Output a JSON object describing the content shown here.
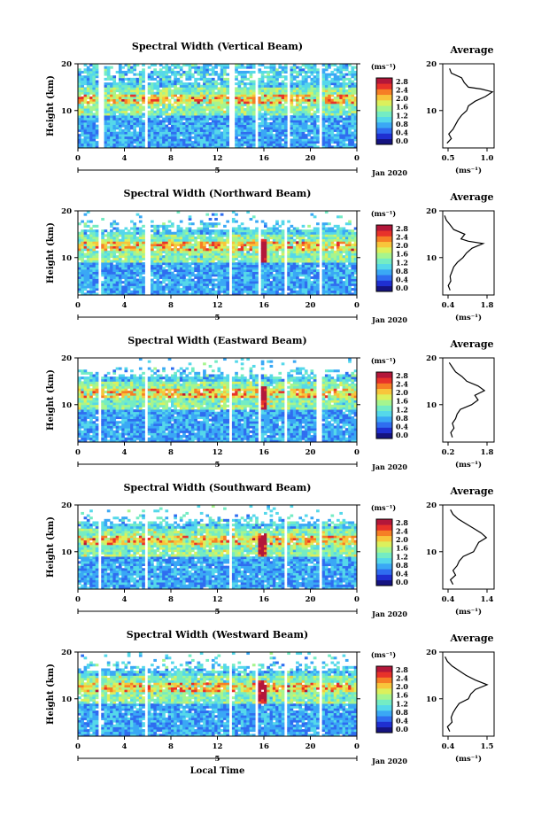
{
  "common": {
    "colorbar_unit": "(ms⁻¹)",
    "colorbar_ticks": [
      "2.8",
      "2.4",
      "2.0",
      "1.6",
      "1.2",
      "0.8",
      "0.4",
      "0.0"
    ],
    "ylabel": "Height (km)",
    "y_ticks": [
      "20",
      "10"
    ],
    "x_ticks": [
      "0",
      "4",
      "8",
      "12",
      "16",
      "20",
      "0"
    ],
    "date_marker": "5",
    "date_label": "Jan 2020",
    "avg_title": "Average",
    "avg_xlabel": "(ms⁻¹)",
    "xlabel_bottom": "Local Time"
  },
  "colors": {
    "colormap": [
      "#151380",
      "#1f2fd1",
      "#2f6df0",
      "#3aa8f5",
      "#55d8ea",
      "#74ecc4",
      "#a6f58e",
      "#dcf05c",
      "#f8c53b",
      "#f67f25",
      "#e8322a",
      "#b3173a"
    ]
  },
  "chart_data": [
    {
      "type": "heatmap",
      "title": "Spectral Width (Vertical Beam)",
      "ylabel": "Height (km)",
      "x_unit": "hours local time",
      "x_range": [
        0,
        24
      ],
      "y_range": [
        2,
        20
      ],
      "color_range": [
        0.0,
        3.0
      ],
      "data_gaps_hours": [
        [
          1.8,
          2.3
        ],
        [
          5.7,
          6.1
        ],
        [
          13.0,
          13.4
        ],
        [
          15.2,
          15.4
        ],
        [
          17.9,
          18.2
        ],
        [
          20.8,
          21.1
        ]
      ],
      "average_profile": {
        "title": "Average",
        "xlim": [
          0.5,
          1.1
        ],
        "x_ticks": [
          "0.5",
          "1.0"
        ],
        "points": [
          [
            0.55,
            3
          ],
          [
            0.6,
            4
          ],
          [
            0.57,
            5
          ],
          [
            0.62,
            6
          ],
          [
            0.65,
            7
          ],
          [
            0.68,
            8
          ],
          [
            0.72,
            9
          ],
          [
            0.78,
            10
          ],
          [
            0.8,
            11
          ],
          [
            0.88,
            12
          ],
          [
            1.0,
            13
          ],
          [
            1.08,
            14
          ],
          [
            0.95,
            14.6
          ],
          [
            0.8,
            15
          ],
          [
            0.75,
            16
          ],
          [
            0.72,
            17
          ],
          [
            0.6,
            18
          ],
          [
            0.58,
            19
          ]
        ]
      }
    },
    {
      "type": "heatmap",
      "title": "Spectral Width (Northward Beam)",
      "ylabel": "Height (km)",
      "x_unit": "hours local time",
      "x_range": [
        0,
        24
      ],
      "y_range": [
        2,
        20
      ],
      "color_range": [
        0.0,
        3.0
      ],
      "data_gaps_hours": [
        [
          1.8,
          2.1
        ],
        [
          5.8,
          6.2
        ],
        [
          13.0,
          13.3
        ],
        [
          15.5,
          15.8
        ],
        [
          17.8,
          18.1
        ],
        [
          20.7,
          21.0
        ]
      ],
      "average_profile": {
        "title": "Average",
        "xlim": [
          0.4,
          1.8
        ],
        "x_ticks": [
          "0.4",
          "1.8"
        ],
        "points": [
          [
            0.6,
            3
          ],
          [
            0.55,
            4
          ],
          [
            0.62,
            5
          ],
          [
            0.6,
            6
          ],
          [
            0.65,
            7
          ],
          [
            0.7,
            8
          ],
          [
            0.8,
            9
          ],
          [
            0.95,
            10
          ],
          [
            1.05,
            11
          ],
          [
            1.2,
            12
          ],
          [
            1.5,
            13
          ],
          [
            1.1,
            13.5
          ],
          [
            0.9,
            14
          ],
          [
            1.0,
            15
          ],
          [
            0.7,
            16
          ],
          [
            0.6,
            17
          ],
          [
            0.5,
            18
          ],
          [
            0.45,
            19
          ]
        ]
      }
    },
    {
      "type": "heatmap",
      "title": "Spectral Width (Eastward Beam)",
      "ylabel": "Height (km)",
      "x_unit": "hours local time",
      "x_range": [
        0,
        24
      ],
      "y_range": [
        2,
        20
      ],
      "color_range": [
        0.0,
        3.0
      ],
      "data_gaps_hours": [
        [
          1.8,
          2.1
        ],
        [
          5.8,
          6.1
        ],
        [
          13.0,
          13.3
        ],
        [
          15.4,
          15.7
        ],
        [
          17.7,
          18.0
        ],
        [
          20.6,
          20.9
        ]
      ],
      "average_profile": {
        "title": "Average",
        "xlim": [
          0.2,
          1.8
        ],
        "x_ticks": [
          "0.2",
          "1.8"
        ],
        "points": [
          [
            0.5,
            3
          ],
          [
            0.45,
            4
          ],
          [
            0.55,
            5
          ],
          [
            0.5,
            6
          ],
          [
            0.6,
            7
          ],
          [
            0.65,
            8
          ],
          [
            0.75,
            9
          ],
          [
            1.1,
            10
          ],
          [
            1.3,
            11
          ],
          [
            1.2,
            12
          ],
          [
            1.5,
            13
          ],
          [
            1.3,
            14
          ],
          [
            0.95,
            15
          ],
          [
            0.8,
            16
          ],
          [
            0.6,
            17
          ],
          [
            0.5,
            18
          ],
          [
            0.4,
            19
          ]
        ]
      }
    },
    {
      "type": "heatmap",
      "title": "Spectral Width (Southward Beam)",
      "ylabel": "Height (km)",
      "x_unit": "hours local time",
      "x_range": [
        0,
        24
      ],
      "y_range": [
        2,
        20
      ],
      "color_range": [
        0.0,
        3.0
      ],
      "data_gaps_hours": [
        [
          1.8,
          2.1
        ],
        [
          5.7,
          6.0
        ],
        [
          13.0,
          13.3
        ],
        [
          15.4,
          15.6
        ],
        [
          17.8,
          18.1
        ],
        [
          20.7,
          21.0
        ]
      ],
      "average_profile": {
        "title": "Average",
        "xlim": [
          0.4,
          1.4
        ],
        "x_ticks": [
          "0.4",
          "1.4"
        ],
        "points": [
          [
            0.6,
            3
          ],
          [
            0.55,
            4
          ],
          [
            0.65,
            5
          ],
          [
            0.6,
            6
          ],
          [
            0.68,
            7
          ],
          [
            0.72,
            8
          ],
          [
            0.8,
            9
          ],
          [
            1.0,
            10
          ],
          [
            1.05,
            11
          ],
          [
            1.1,
            12
          ],
          [
            1.25,
            13
          ],
          [
            1.15,
            14
          ],
          [
            1.0,
            15
          ],
          [
            0.85,
            16
          ],
          [
            0.7,
            17
          ],
          [
            0.6,
            18
          ],
          [
            0.55,
            19
          ]
        ]
      }
    },
    {
      "type": "heatmap",
      "title": "Spectral Width (Westward Beam)",
      "ylabel": "Height (km)",
      "xlabel": "Local Time",
      "x_unit": "hours local time",
      "x_range": [
        0,
        24
      ],
      "y_range": [
        2,
        20
      ],
      "color_range": [
        0.0,
        3.0
      ],
      "data_gaps_hours": [
        [
          1.8,
          2.1
        ],
        [
          5.8,
          6.1
        ],
        [
          13.0,
          13.3
        ],
        [
          15.3,
          15.5
        ],
        [
          17.8,
          18.1
        ],
        [
          20.7,
          21.0
        ]
      ],
      "average_profile": {
        "title": "Average",
        "xlim": [
          0.4,
          1.5
        ],
        "x_ticks": [
          "0.4",
          "1.5"
        ],
        "points": [
          [
            0.55,
            3
          ],
          [
            0.5,
            4
          ],
          [
            0.6,
            5
          ],
          [
            0.58,
            6
          ],
          [
            0.62,
            7
          ],
          [
            0.68,
            8
          ],
          [
            0.75,
            9
          ],
          [
            0.95,
            10
          ],
          [
            1.0,
            11
          ],
          [
            1.1,
            12
          ],
          [
            1.35,
            13
          ],
          [
            1.1,
            14
          ],
          [
            0.9,
            15
          ],
          [
            0.75,
            16
          ],
          [
            0.6,
            17
          ],
          [
            0.5,
            18
          ],
          [
            0.45,
            19
          ]
        ]
      }
    }
  ]
}
